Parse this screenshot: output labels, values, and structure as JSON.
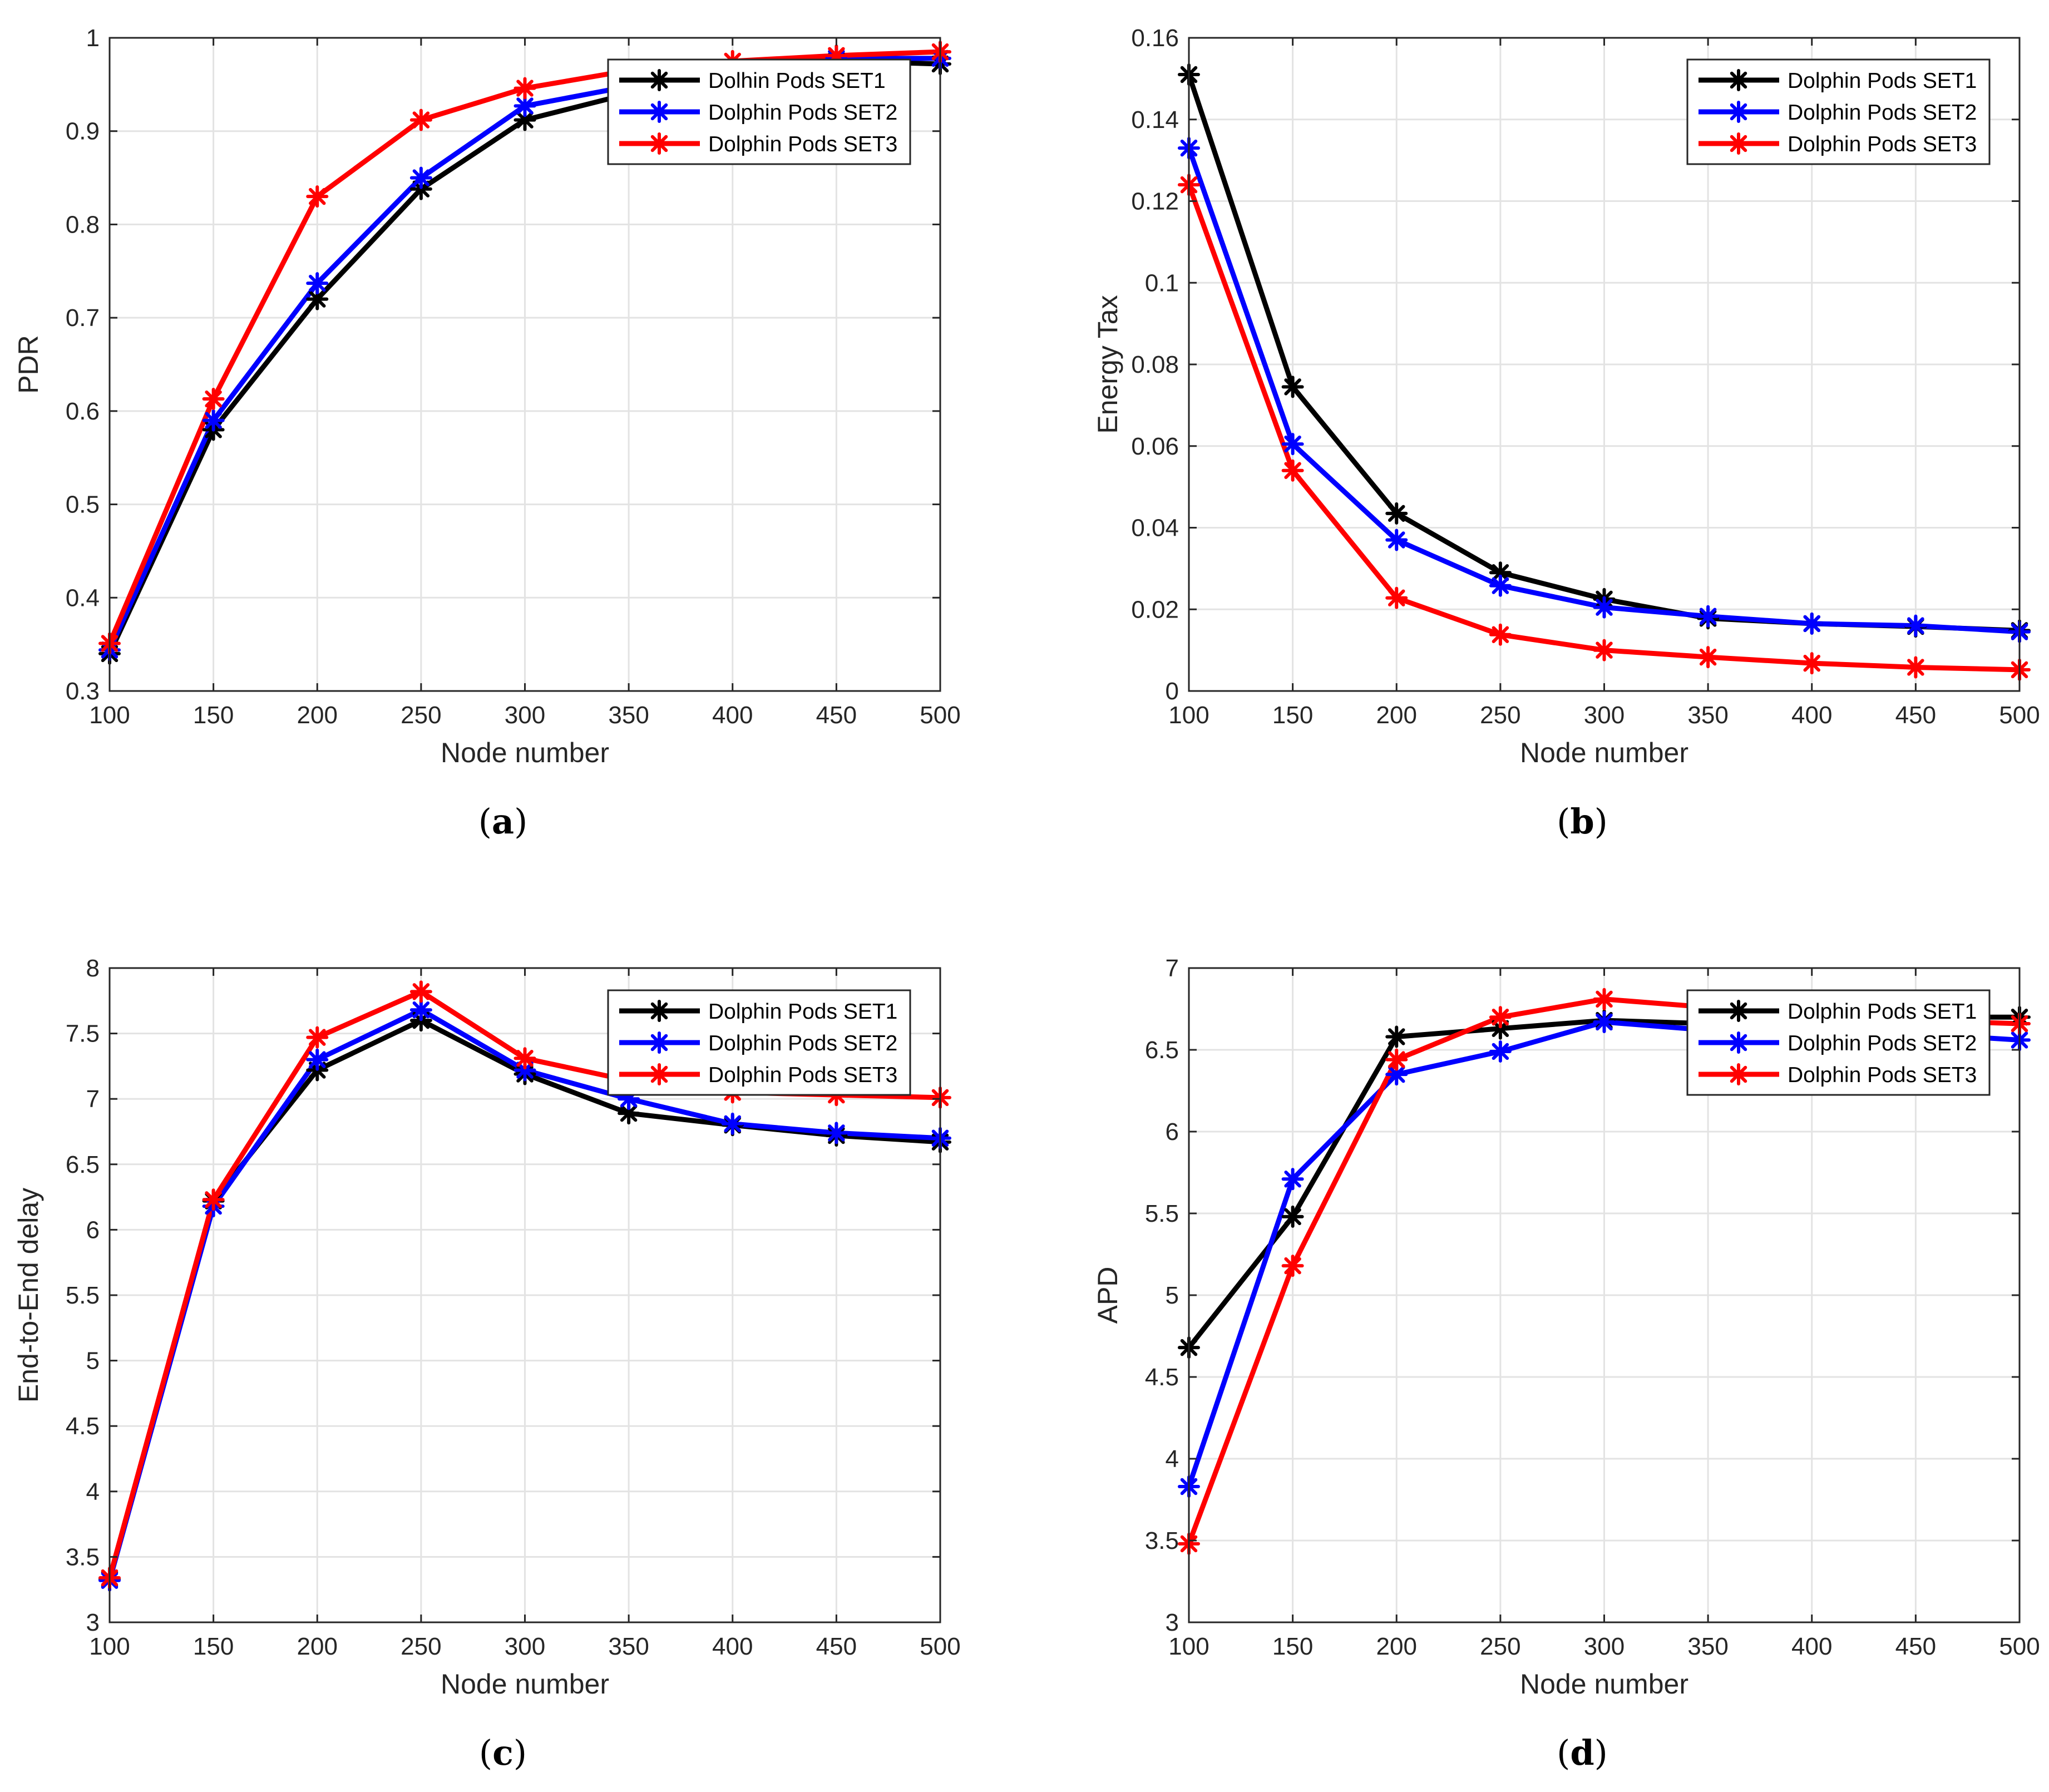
{
  "panels": [
    {
      "caption": "a",
      "chart_data": {
        "type": "line",
        "xlabel": "Node number",
        "ylabel": "PDR",
        "xlim": [
          100,
          500
        ],
        "ylim": [
          0.3,
          1
        ],
        "xticks": [
          100,
          150,
          200,
          250,
          300,
          350,
          400,
          450,
          500
        ],
        "xtick_labels": [
          "100",
          "150",
          "200",
          "250",
          "300",
          "350",
          "400",
          "450",
          "500"
        ],
        "yticks": [
          0.3,
          0.4,
          0.5,
          0.6,
          0.7,
          0.8,
          0.9,
          1
        ],
        "ytick_labels": [
          "0.3",
          "0.4",
          "0.5",
          "0.6",
          "0.7",
          "0.8",
          "0.9",
          "1"
        ],
        "grid": true,
        "legend_position": "top-right",
        "x": [
          100,
          150,
          200,
          250,
          300,
          350,
          400,
          450,
          500
        ],
        "series": [
          {
            "name": "Dolhin Pods SET1",
            "color": "#000000",
            "values": [
              0.34,
              0.58,
              0.72,
              0.838,
              0.912,
              0.94,
              0.965,
              0.975,
              0.972
            ]
          },
          {
            "name": "Dolphin Pods SET2",
            "color": "#0000ff",
            "values": [
              0.344,
              0.59,
              0.737,
              0.85,
              0.927,
              0.948,
              0.967,
              0.978,
              0.978
            ]
          },
          {
            "name": "Dolphin Pods SET3",
            "color": "#ff0000",
            "values": [
              0.351,
              0.613,
              0.83,
              0.912,
              0.946,
              0.965,
              0.975,
              0.981,
              0.985
            ]
          }
        ]
      }
    },
    {
      "caption": "b",
      "chart_data": {
        "type": "line",
        "xlabel": "Node number",
        "ylabel": "Energy Tax",
        "xlim": [
          100,
          500
        ],
        "ylim": [
          0,
          0.16
        ],
        "xticks": [
          100,
          150,
          200,
          250,
          300,
          350,
          400,
          450,
          500
        ],
        "xtick_labels": [
          "100",
          "150",
          "200",
          "250",
          "300",
          "350",
          "400",
          "450",
          "500"
        ],
        "yticks": [
          0,
          0.02,
          0.04,
          0.06,
          0.08,
          0.1,
          0.12,
          0.14,
          0.16
        ],
        "ytick_labels": [
          "0",
          "0.02",
          "0.04",
          "0.06",
          "0.08",
          "0.1",
          "0.12",
          "0.14",
          "0.16"
        ],
        "grid": true,
        "legend_position": "top-right",
        "x": [
          100,
          150,
          200,
          250,
          300,
          350,
          400,
          450,
          500
        ],
        "series": [
          {
            "name": "Dolphin Pods SET1",
            "color": "#000000",
            "values": [
              0.151,
              0.0745,
              0.0435,
              0.029,
              0.0225,
              0.0178,
              0.0165,
              0.0158,
              0.0148
            ]
          },
          {
            "name": "Dolphin Pods SET2",
            "color": "#0000ff",
            "values": [
              0.133,
              0.0605,
              0.037,
              0.0258,
              0.0205,
              0.0183,
              0.0165,
              0.016,
              0.0145
            ]
          },
          {
            "name": "Dolphin Pods SET3",
            "color": "#ff0000",
            "values": [
              0.124,
              0.054,
              0.0228,
              0.0138,
              0.01,
              0.0083,
              0.0068,
              0.0058,
              0.0052
            ]
          }
        ]
      }
    },
    {
      "caption": "c",
      "chart_data": {
        "type": "line",
        "xlabel": "Node number",
        "ylabel": "End-to-End delay",
        "xlim": [
          100,
          500
        ],
        "ylim": [
          3,
          8
        ],
        "xticks": [
          100,
          150,
          200,
          250,
          300,
          350,
          400,
          450,
          500
        ],
        "xtick_labels": [
          "100",
          "150",
          "200",
          "250",
          "300",
          "350",
          "400",
          "450",
          "500"
        ],
        "yticks": [
          3,
          3.5,
          4,
          4.5,
          5,
          5.5,
          6,
          6.5,
          7,
          7.5,
          8
        ],
        "ytick_labels": [
          "3",
          "3.5",
          "4",
          "4.5",
          "5",
          "5.5",
          "6",
          "6.5",
          "7",
          "7.5",
          "8"
        ],
        "grid": true,
        "legend_position": "top-right",
        "x": [
          100,
          150,
          200,
          250,
          300,
          350,
          400,
          450,
          500
        ],
        "series": [
          {
            "name": "Dolphin Pods SET1",
            "color": "#000000",
            "values": [
              3.33,
              6.22,
              7.22,
              7.6,
              7.19,
              6.89,
              6.8,
              6.72,
              6.67
            ]
          },
          {
            "name": "Dolphin Pods SET2",
            "color": "#0000ff",
            "values": [
              3.32,
              6.18,
              7.3,
              7.68,
              7.22,
              7.0,
              6.81,
              6.74,
              6.7
            ]
          },
          {
            "name": "Dolphin Pods SET3",
            "color": "#ff0000",
            "values": [
              3.34,
              6.23,
              7.47,
              7.82,
              7.31,
              7.14,
              7.05,
              7.03,
              7.01
            ]
          }
        ]
      }
    },
    {
      "caption": "d",
      "chart_data": {
        "type": "line",
        "xlabel": "Node number",
        "ylabel": "APD",
        "xlim": [
          100,
          500
        ],
        "ylim": [
          3,
          7
        ],
        "xticks": [
          100,
          150,
          200,
          250,
          300,
          350,
          400,
          450,
          500
        ],
        "xtick_labels": [
          "100",
          "150",
          "200",
          "250",
          "300",
          "350",
          "400",
          "450",
          "500"
        ],
        "yticks": [
          3,
          3.5,
          4,
          4.5,
          5,
          5.5,
          6,
          6.5,
          7
        ],
        "ytick_labels": [
          "3",
          "3.5",
          "4",
          "4.5",
          "5",
          "5.5",
          "6",
          "6.5",
          "7"
        ],
        "grid": true,
        "legend_position": "top-right",
        "x": [
          100,
          150,
          200,
          250,
          300,
          350,
          400,
          450,
          500
        ],
        "series": [
          {
            "name": "Dolphin Pods SET1",
            "color": "#000000",
            "values": [
              4.68,
              5.48,
              6.58,
              6.63,
              6.68,
              6.66,
              6.7,
              6.7,
              6.7
            ]
          },
          {
            "name": "Dolphin Pods SET2",
            "color": "#0000ff",
            "values": [
              3.83,
              5.71,
              6.35,
              6.49,
              6.67,
              6.62,
              6.62,
              6.6,
              6.56
            ]
          },
          {
            "name": "Dolphin Pods SET3",
            "color": "#ff0000",
            "values": [
              3.48,
              5.18,
              6.44,
              6.7,
              6.81,
              6.76,
              6.7,
              6.68,
              6.66
            ]
          }
        ]
      }
    }
  ]
}
